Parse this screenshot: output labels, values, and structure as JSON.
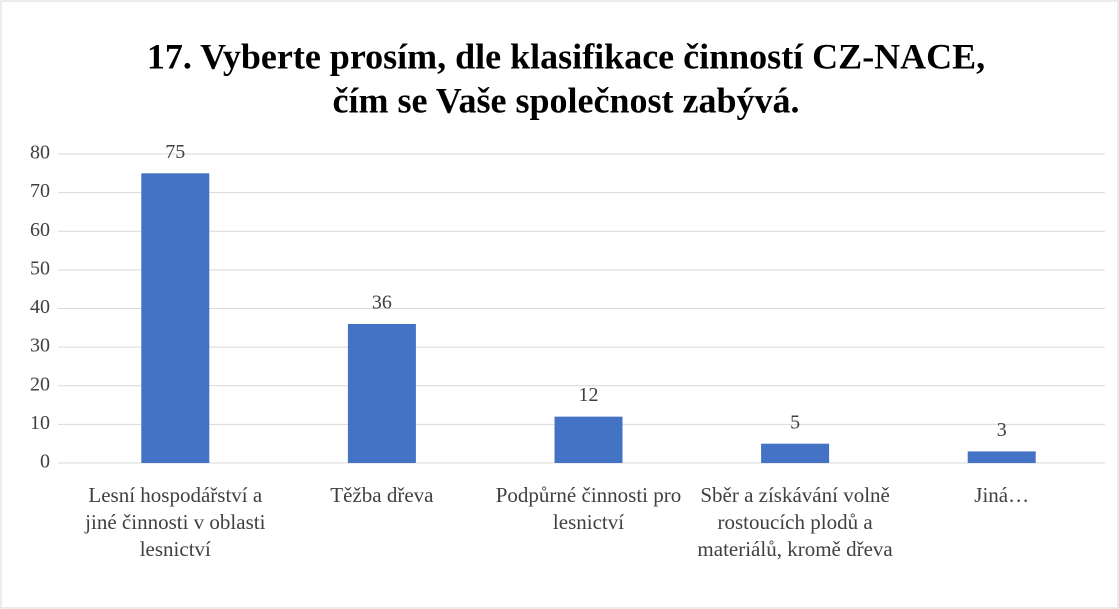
{
  "chart_data": {
    "type": "bar",
    "title": [
      "17. Vyberte prosím, dle klasifikace činností CZ-NACE,",
      "čím se Vaše společnost zabývá."
    ],
    "categories": [
      "Lesní hospodářství a jiné činnosti v oblasti lesnictví",
      "Těžba dřeva",
      "Podpůrné činnosti pro lesnictví",
      "Sběr a získávání volně rostoucích plodů a materiálů, kromě dřeva",
      "Jiná…"
    ],
    "values": [
      75,
      36,
      12,
      5,
      3
    ],
    "color": "#4472c4",
    "ylim": [
      0,
      80
    ],
    "yticks": [
      0,
      10,
      20,
      30,
      40,
      50,
      60,
      70,
      80
    ],
    "grid": true
  }
}
